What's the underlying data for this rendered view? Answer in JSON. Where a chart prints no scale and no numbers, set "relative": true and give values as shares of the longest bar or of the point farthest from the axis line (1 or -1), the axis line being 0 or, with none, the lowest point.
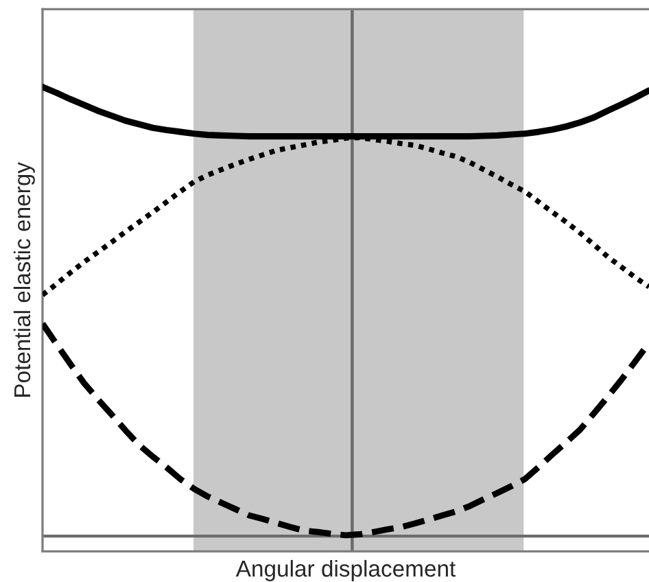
{
  "chart_data": {
    "type": "line",
    "relative": true,
    "xlabel": "Angular displacement",
    "ylabel": "Potential elastic energy",
    "categories": [
      null,
      null,
      null,
      null,
      null,
      null,
      null,
      null,
      null,
      null,
      null,
      null,
      null,
      null,
      null,
      null,
      null,
      null,
      null,
      null,
      null,
      null,
      null,
      null,
      null,
      null,
      null,
      null,
      null,
      null,
      null,
      null,
      null,
      null,
      null,
      null,
      null,
      null,
      null,
      null,
      null,
      null,
      null,
      null,
      null
    ],
    "series": [
      {
        "color": "#000000",
        "line_style": "solid",
        "values": [
          1.0,
          0.987,
          0.973,
          0.96,
          0.947,
          0.936,
          0.925,
          0.917,
          0.909,
          0.904,
          0.9,
          0.896,
          0.893,
          0.892,
          0.891,
          0.89,
          0.89,
          0.89,
          0.89,
          0.89,
          0.89,
          0.89,
          0.89,
          0.89,
          0.89,
          0.89,
          0.89,
          0.89,
          0.89,
          0.89,
          0.89,
          0.89,
          0.891,
          0.892,
          0.894,
          0.896,
          0.9,
          0.905,
          0.912,
          0.921,
          0.932,
          0.947,
          0.961,
          0.976,
          0.992
        ]
      },
      {
        "color": "#000000",
        "line_style": "dotted",
        "values": [
          0.537,
          0.561,
          0.586,
          0.61,
          0.632,
          0.654,
          0.677,
          0.699,
          0.721,
          0.744,
          0.767,
          0.789,
          0.804,
          0.816,
          0.828,
          0.839,
          0.849,
          0.859,
          0.865,
          0.871,
          0.877,
          0.881,
          0.886,
          0.887,
          0.883,
          0.879,
          0.874,
          0.87,
          0.862,
          0.853,
          0.845,
          0.832,
          0.816,
          0.8,
          0.783,
          0.767,
          0.744,
          0.721,
          0.699,
          0.675,
          0.649,
          0.622,
          0.599,
          0.576,
          0.555
        ]
      },
      {
        "color": "#000000",
        "line_style": "dashed",
        "values": [
          0.473,
          0.428,
          0.384,
          0.341,
          0.305,
          0.271,
          0.236,
          0.203,
          0.177,
          0.153,
          0.127,
          0.105,
          0.088,
          0.074,
          0.06,
          0.046,
          0.038,
          0.029,
          0.02,
          0.012,
          0.009,
          0.005,
          0.002,
          0.004,
          0.009,
          0.015,
          0.02,
          0.028,
          0.037,
          0.046,
          0.055,
          0.067,
          0.082,
          0.096,
          0.111,
          0.127,
          0.154,
          0.182,
          0.209,
          0.237,
          0.273,
          0.31,
          0.348,
          0.389,
          0.43
        ]
      }
    ]
  }
}
